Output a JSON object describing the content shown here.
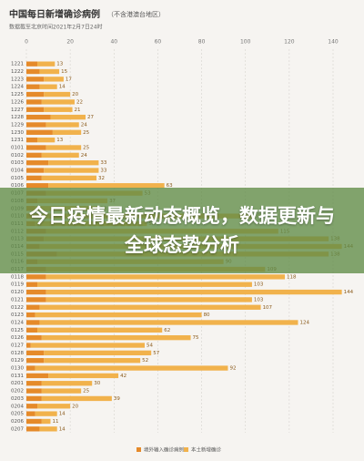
{
  "chart_data": {
    "type": "stacked-bar-horizontal",
    "title": "中国每日新增确诊病例",
    "title_note": "（不含港澳台地区）",
    "subtitle": "数据截至北京时间2021年2月7日24时",
    "categories": [
      "1221",
      "1222",
      "1223",
      "1224",
      "1225",
      "1226",
      "1227",
      "1228",
      "1229",
      "1230",
      "1231",
      "0101",
      "0102",
      "0103",
      "0104",
      "0105",
      "0106",
      "0107",
      "0108",
      "0109",
      "0110",
      "0111",
      "0112",
      "0113",
      "0114",
      "0115",
      "0116",
      "0117",
      "0118",
      "0119",
      "0120",
      "0121",
      "0122",
      "0123",
      "0124",
      "0125",
      "0126",
      "0127",
      "0128",
      "0129",
      "0130",
      "0131",
      "0201",
      "0202",
      "0203",
      "0204",
      "0205",
      "0206",
      "0207"
    ],
    "series": [
      {
        "name": "境外输入确诊病例",
        "color": "#e58a2a",
        "values": [
          5,
          6,
          8,
          6,
          8,
          7,
          8,
          11,
          9,
          12,
          5,
          9,
          7,
          10,
          8,
          7,
          10,
          9,
          5,
          4,
          6,
          4,
          9,
          8,
          6,
          14,
          5,
          9,
          9,
          5,
          9,
          9,
          6,
          4,
          6,
          5,
          7,
          2,
          8,
          8,
          4,
          10,
          7,
          7,
          7,
          5,
          4,
          7,
          6
        ]
      },
      {
        "name": "本土新增确诊",
        "color": "#f1b24c",
        "values": [
          8,
          9,
          9,
          8,
          12,
          15,
          13,
          16,
          15,
          13,
          8,
          16,
          17,
          23,
          25,
          25,
          53,
          44,
          32,
          29,
          97,
          51,
          106,
          130,
          138,
          124,
          85,
          100,
          109,
          98,
          135,
          94,
          101,
          76,
          118,
          57,
          68,
          52,
          49,
          44,
          88,
          32,
          23,
          18,
          32,
          15,
          10,
          4,
          8
        ]
      }
    ],
    "total_labels": [
      "13",
      "15",
      "17",
      "14",
      "20",
      "22",
      "21",
      "27",
      "24",
      "25",
      "13",
      "25",
      "24",
      "33",
      "33",
      "32",
      "63",
      "53",
      "37",
      "33",
      "103",
      "55",
      "115",
      "138",
      "144",
      "138",
      "90",
      "109",
      "118",
      "103",
      "144",
      "103",
      "107",
      "80",
      "124",
      "62",
      "75",
      "54",
      "57",
      "52",
      "92",
      "42",
      "30",
      "25",
      "39",
      "20",
      "14",
      "11",
      "14"
    ],
    "xlim": [
      0,
      140
    ],
    "xticks": [
      0,
      20,
      40,
      60,
      80,
      100,
      120,
      140
    ],
    "grid": true,
    "banner": "今日疫情最新动态概览，数据更新与全球态势分析"
  }
}
